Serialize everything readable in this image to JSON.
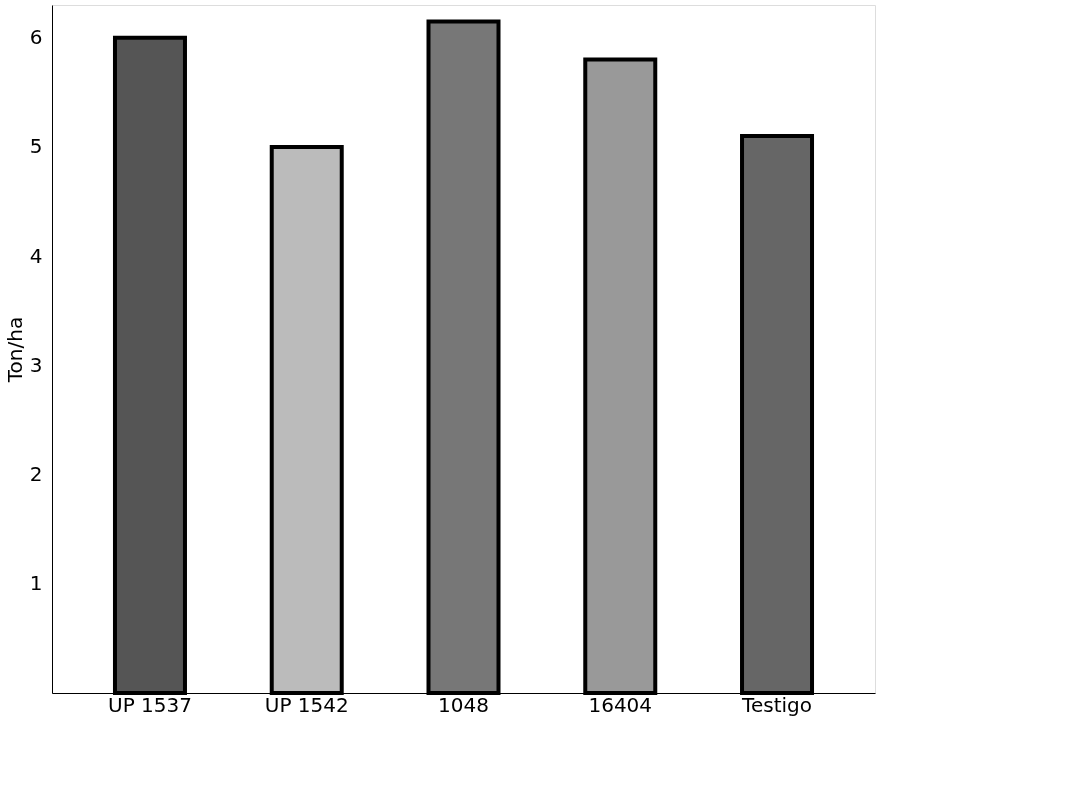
{
  "chart_data": {
    "type": "bar",
    "ylabel": "Ton/ha",
    "categories": [
      "UP 1537",
      "UP 1542",
      "1048",
      "16404",
      "Testigo"
    ],
    "values": [
      6.0,
      5.0,
      6.15,
      5.8,
      5.1
    ],
    "colors": [
      "#555555",
      "#bbbbbb",
      "#777777",
      "#999999",
      "#666666"
    ],
    "ylim": [
      0,
      6.3
    ],
    "yticks": [
      1,
      2,
      3,
      4,
      5,
      6
    ],
    "grid": false
  }
}
